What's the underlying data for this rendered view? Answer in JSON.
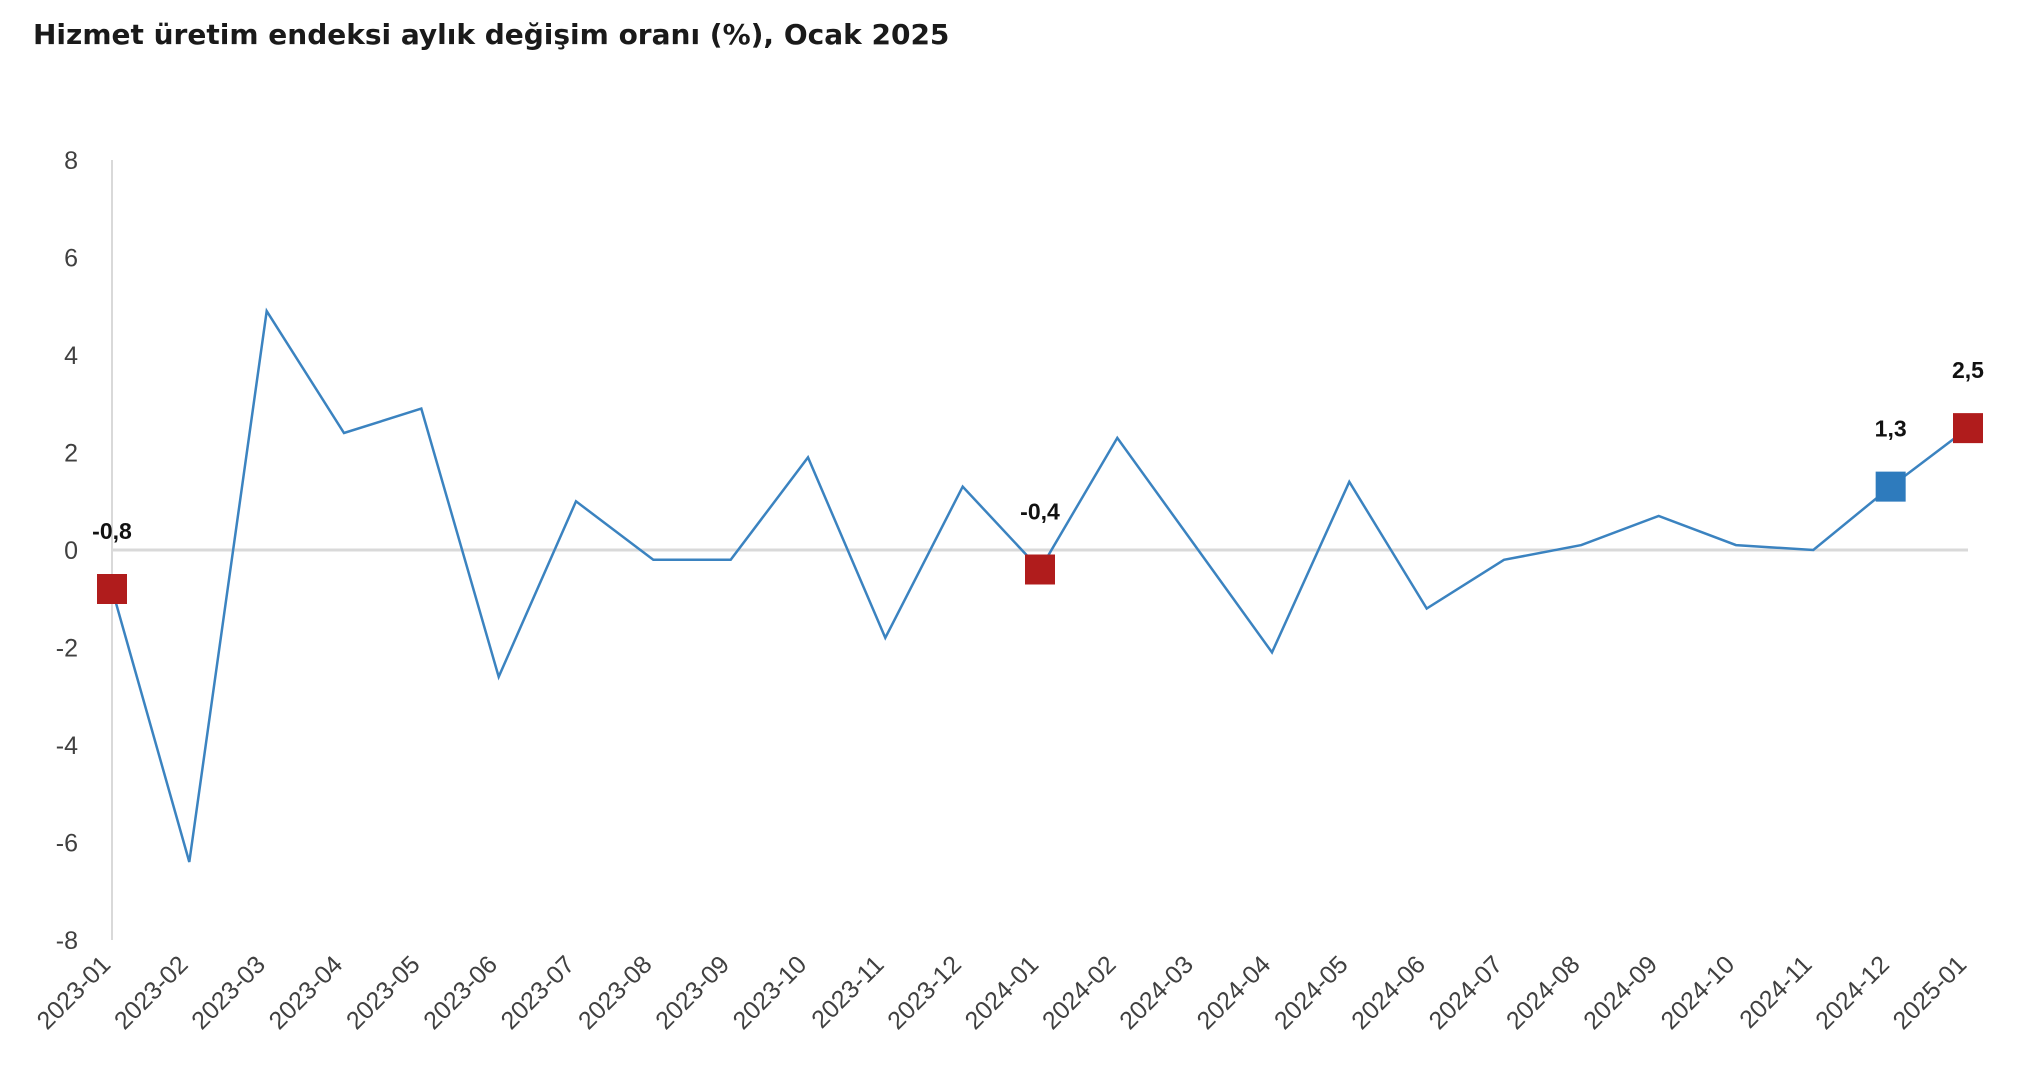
{
  "title": "Hizmet üretim endeksi aylık değişim oranı (%), Ocak 2025",
  "colors": {
    "line": "#3b83c0",
    "marker_red": "#b01c1c",
    "marker_blue": "#2e7bbd",
    "zero_line": "#d9d9d9",
    "axis": "#d9d9d9",
    "tick_text": "#404040"
  },
  "chart_data": {
    "type": "line",
    "title": "Hizmet üretim endeksi aylık değişim oranı (%), Ocak 2025",
    "xlabel": "",
    "ylabel": "",
    "ylim": [
      -8,
      8
    ],
    "yticks": [
      8,
      6,
      4,
      2,
      0,
      -2,
      -4,
      -6,
      -8
    ],
    "grid": false,
    "categories": [
      "2023-01",
      "2023-02",
      "2023-03",
      "2023-04",
      "2023-05",
      "2023-06",
      "2023-07",
      "2023-08",
      "2023-09",
      "2023-10",
      "2023-11",
      "2023-12",
      "2024-01",
      "2024-02",
      "2024-03",
      "2024-04",
      "2024-05",
      "2024-06",
      "2024-07",
      "2024-08",
      "2024-09",
      "2024-10",
      "2024-11",
      "2024-12",
      "2025-01"
    ],
    "series": [
      {
        "values": [
          -0.8,
          -6.4,
          4.9,
          2.4,
          2.9,
          -2.6,
          1.0,
          -0.2,
          -0.2,
          1.9,
          -1.8,
          1.3,
          -0.4,
          2.3,
          0.1,
          -2.1,
          1.4,
          -1.2,
          -0.2,
          0.1,
          0.7,
          0.1,
          0.0,
          1.3,
          2.5
        ]
      }
    ],
    "highlighted_points": [
      {
        "category": "2023-01",
        "label": "-0,8",
        "marker_color": "red"
      },
      {
        "category": "2024-01",
        "label": "-0,4",
        "marker_color": "red"
      },
      {
        "category": "2024-12",
        "label": "1,3",
        "marker_color": "blue"
      },
      {
        "category": "2025-01",
        "label": "2,5",
        "marker_color": "red"
      }
    ]
  }
}
